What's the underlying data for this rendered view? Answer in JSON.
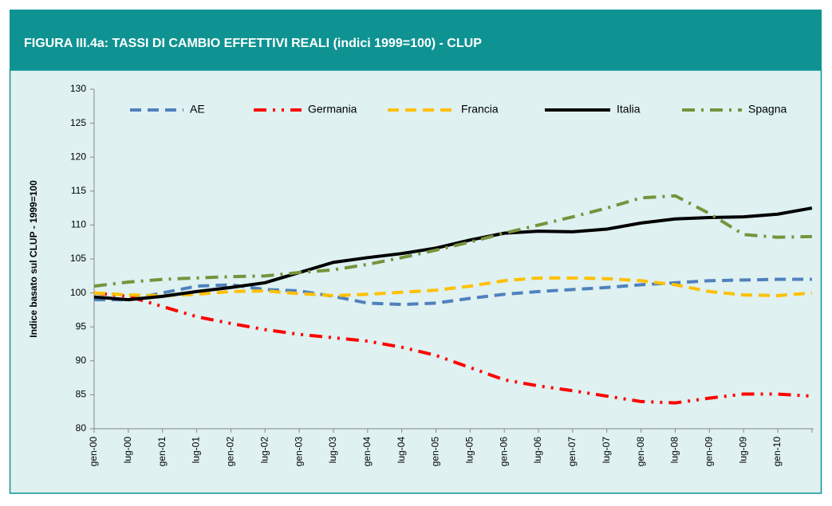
{
  "chart_data": {
    "type": "line",
    "title": "FIGURA III.4a: TASSI DI CAMBIO EFFETTIVI REALI (indici 1999=100)  - CLUP",
    "y_label": "Indice basato sul CLUP - 1999=100",
    "categories": [
      "gen-00",
      "lug-00",
      "gen-01",
      "lug-01",
      "gen-02",
      "lug-02",
      "gen-03",
      "lug-03",
      "gen-04",
      "lug-04",
      "gen-05",
      "lug-05",
      "gen-06",
      "lug-06",
      "gen-07",
      "lug-07",
      "gen-08",
      "lug-08",
      "gen-09",
      "lug-09",
      "gen-10",
      null
    ],
    "series": [
      {
        "name": "AE",
        "color": "#4f81bd",
        "dash": "dashed",
        "values": [
          99,
          99,
          100,
          101,
          101.2,
          100.5,
          100.3,
          99.5,
          98.5,
          98.3,
          98.5,
          99.2,
          99.8,
          100.2,
          100.5,
          100.8,
          101.2,
          101.5,
          101.8,
          101.9,
          102,
          102
        ]
      },
      {
        "name": "Germania",
        "color": "#ff0000",
        "dash": "dash-dot-dot",
        "values": [
          100,
          99.5,
          98,
          96.5,
          95.5,
          94.6,
          93.9,
          93.4,
          92.9,
          92,
          90.8,
          89,
          87.2,
          86.3,
          85.6,
          84.8,
          84,
          83.8,
          84.5,
          85.1,
          85.1,
          84.8
        ]
      },
      {
        "name": "Francia",
        "color": "#ffc000",
        "dash": "dashed",
        "values": [
          100,
          99.7,
          99.6,
          99.8,
          100.2,
          100.3,
          99.9,
          99.6,
          99.8,
          100.1,
          100.4,
          101,
          101.8,
          102.2,
          102.2,
          102.1,
          101.8,
          101.2,
          100.2,
          99.7,
          99.6,
          100
        ]
      },
      {
        "name": "Italia",
        "color": "#000000",
        "dash": "solid",
        "values": [
          99.4,
          99,
          99.5,
          100.2,
          100.8,
          101.5,
          103,
          104.5,
          105.2,
          105.8,
          106.6,
          107.8,
          108.8,
          109.1,
          109,
          109.4,
          110.3,
          110.9,
          111.1,
          111.2,
          111.6,
          112.5
        ]
      },
      {
        "name": "Spagna",
        "color": "#77933c",
        "dash": "dash-dot",
        "values": [
          101,
          101.6,
          102,
          102.2,
          102.4,
          102.5,
          103,
          103.4,
          104.2,
          105.2,
          106.3,
          107.5,
          108.8,
          110,
          111.2,
          112.5,
          114,
          114.3,
          111.7,
          108.6,
          108.2,
          108.3
        ]
      }
    ],
    "ylim": [
      80,
      130
    ],
    "yticks": [
      80,
      85,
      90,
      95,
      100,
      105,
      110,
      115,
      120,
      125,
      130
    ],
    "grid": false,
    "legend": "top"
  }
}
